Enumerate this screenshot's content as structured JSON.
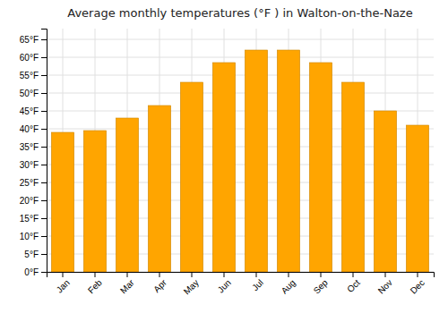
{
  "chart_data": {
    "type": "bar",
    "title": "Average monthly temperatures (°F ) in Walton-on-the-Naze",
    "categories": [
      "Jan",
      "Feb",
      "Mar",
      "Apr",
      "May",
      "Jun",
      "Jul",
      "Aug",
      "Sep",
      "Oct",
      "Nov",
      "Dec"
    ],
    "values": [
      39,
      39.5,
      43,
      46.5,
      53,
      58.5,
      62,
      62,
      58.5,
      53,
      45,
      41
    ],
    "color": "#FFA500",
    "ylim": [
      0,
      68
    ],
    "yticks": [
      {
        "value": 0,
        "label": "0°F"
      },
      {
        "value": 5,
        "label": "5°F"
      },
      {
        "value": 10,
        "label": "10°F"
      },
      {
        "value": 15,
        "label": "15°F"
      },
      {
        "value": 20,
        "label": "20°F"
      },
      {
        "value": 25,
        "label": "25°F"
      },
      {
        "value": 30,
        "label": "30°F"
      },
      {
        "value": 35,
        "label": "35°F"
      },
      {
        "value": 40,
        "label": "40°F"
      },
      {
        "value": 45,
        "label": "45°F"
      },
      {
        "value": 50,
        "label": "50°F"
      },
      {
        "value": 55,
        "label": "55°F"
      },
      {
        "value": 60,
        "label": "60°F"
      },
      {
        "value": 65,
        "label": "65°F"
      }
    ],
    "grid": true
  }
}
